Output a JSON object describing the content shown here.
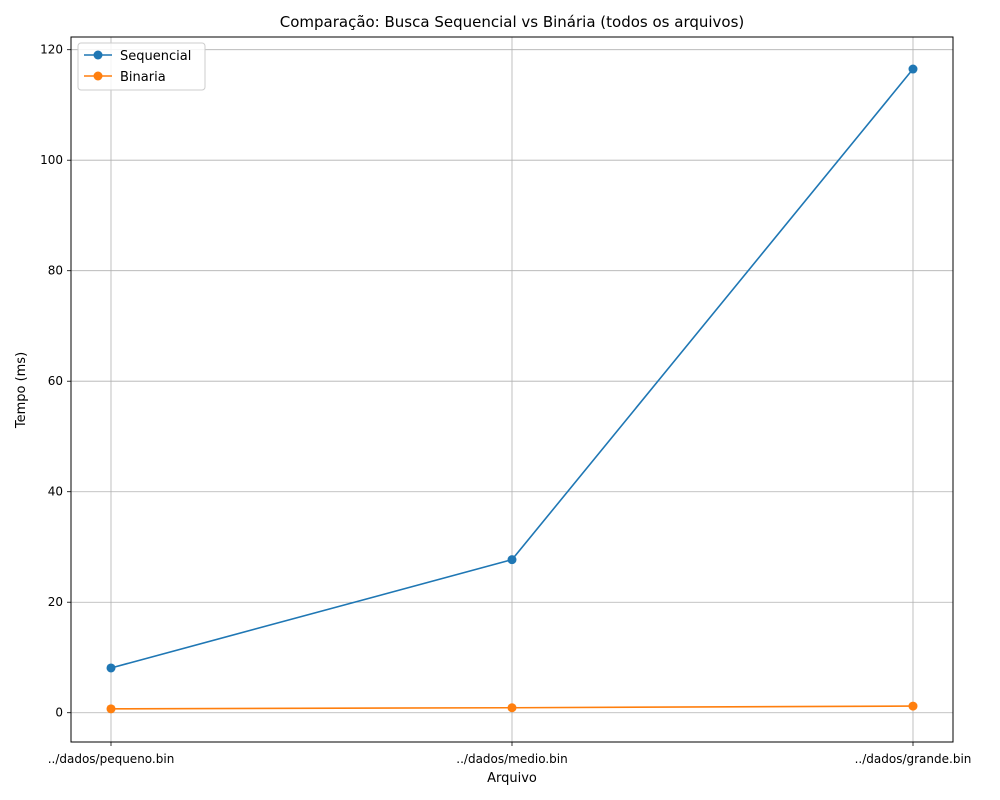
{
  "chart_data": {
    "type": "line",
    "title": "Comparação: Busca Sequencial vs Binária (todos os arquivos)",
    "xlabel": "Arquivo",
    "ylabel": "Tempo (ms)",
    "categories": [
      "../dados/pequeno.bin",
      "../dados/medio.bin",
      "../dados/grande.bin"
    ],
    "ylim": [
      -5.3,
      122.3
    ],
    "yticks": [
      0,
      20,
      40,
      60,
      80,
      100,
      120
    ],
    "grid": true,
    "legend_position": "top-left",
    "series": [
      {
        "name": "Sequencial",
        "color": "#1f77b4",
        "marker": "circle",
        "values": [
          8.1,
          27.7,
          116.5
        ]
      },
      {
        "name": "Binaria",
        "color": "#ff7f0e",
        "marker": "circle",
        "values": [
          0.7,
          0.9,
          1.2
        ]
      }
    ]
  }
}
